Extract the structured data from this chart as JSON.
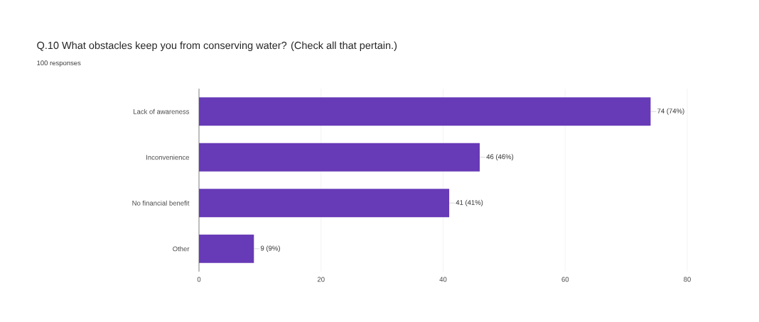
{
  "chart_data": {
    "type": "bar",
    "orientation": "horizontal",
    "title": "Q.10  What obstacles keep you from conserving water? (Check all that pertain.)",
    "subtitle": "100 responses",
    "categories": [
      "Lack of awareness",
      "Inconvenience",
      "No financial benefit",
      "Other"
    ],
    "values": [
      74,
      46,
      41,
      9
    ],
    "value_labels": [
      "74 (74%)",
      "46 (46%)",
      "41 (41%)",
      "9 (9%)"
    ],
    "color": "#673ab7",
    "xlim": [
      0,
      80
    ],
    "xticks": [
      0,
      20,
      40,
      60,
      80
    ],
    "grid": "x"
  }
}
